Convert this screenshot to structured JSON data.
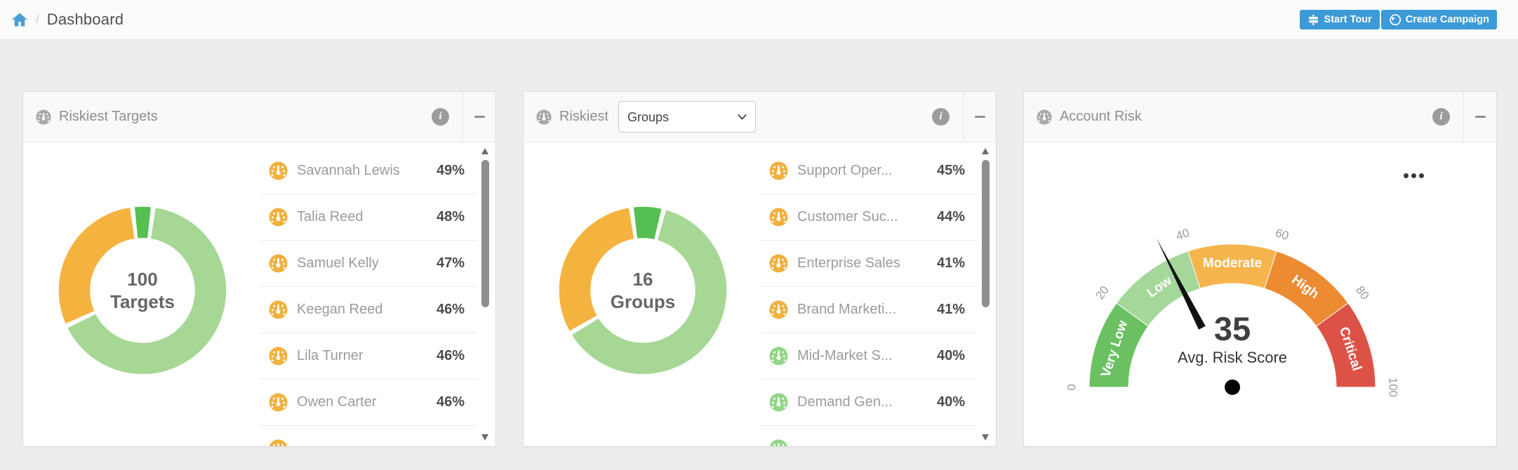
{
  "header": {
    "title": "Dashboard",
    "separator": "/",
    "start_tour_label": "Start Tour",
    "create_campaign_label": "Create Campaign"
  },
  "icons": {
    "info_glyph": "i"
  },
  "colors": {
    "accent_blue": "#3c9ad6",
    "header_icon_gray": "#a9a9a9",
    "risk_moderate_icon": "#f0b13f",
    "risk_low_icon": "#93d687",
    "donut_green": "#56bf52",
    "donut_light_green": "#a6d795",
    "donut_orange": "#f4b23f",
    "scrollbar_thumb": "#8f8f8f",
    "page_background": "#ededec"
  },
  "cards": {
    "riskiest_targets": {
      "title": "Riskiest Targets",
      "list": [
        {
          "name": "Savannah Lewis",
          "pct": "49%",
          "level": "moderate"
        },
        {
          "name": "Talia Reed",
          "pct": "48%",
          "level": "moderate"
        },
        {
          "name": "Samuel Kelly",
          "pct": "47%",
          "level": "moderate"
        },
        {
          "name": "Keegan Reed",
          "pct": "46%",
          "level": "moderate"
        },
        {
          "name": "Lila Turner",
          "pct": "46%",
          "level": "moderate"
        },
        {
          "name": "Owen Carter",
          "pct": "46%",
          "level": "moderate"
        }
      ],
      "partial_next_row_icon_level": "moderate"
    },
    "riskiest_groups": {
      "title": "Riskiest",
      "dropdown_value": "Groups",
      "list": [
        {
          "name": "Support Oper...",
          "pct": "45%",
          "level": "moderate"
        },
        {
          "name": "Customer Suc...",
          "pct": "44%",
          "level": "moderate"
        },
        {
          "name": "Enterprise Sales",
          "pct": "41%",
          "level": "moderate"
        },
        {
          "name": "Brand Marketi...",
          "pct": "41%",
          "level": "moderate"
        },
        {
          "name": "Mid-Market S...",
          "pct": "40%",
          "level": "low"
        },
        {
          "name": "Demand Gen...",
          "pct": "40%",
          "level": "low"
        }
      ],
      "partial_next_row_icon_level": "low"
    },
    "account_risk": {
      "title": "Account Risk"
    }
  },
  "chart_data": [
    {
      "type": "pie",
      "subtype": "donut",
      "title": "Riskiest Targets",
      "center_text": [
        "100",
        "Targets"
      ],
      "start_angle": -7,
      "direction": "clockwise",
      "slices": [
        {
          "label": "green",
          "value": 4,
          "color": "#56bf52"
        },
        {
          "label": "light-green",
          "value": 66,
          "color": "#a6d795"
        },
        {
          "label": "orange",
          "value": 30,
          "color": "#f4b23f"
        }
      ]
    },
    {
      "type": "pie",
      "subtype": "donut",
      "title": "Riskiest Groups",
      "center_text": [
        "16",
        "Groups"
      ],
      "start_angle": -8,
      "direction": "clockwise",
      "slices": [
        {
          "label": "green",
          "value": 1,
          "color": "#56bf52"
        },
        {
          "label": "light-green",
          "value": 10,
          "color": "#a6d795"
        },
        {
          "label": "orange",
          "value": 5,
          "color": "#f4b23f"
        }
      ]
    },
    {
      "type": "gauge",
      "title": "Account Risk",
      "min": 0,
      "max": 100,
      "value": 35,
      "value_label": "Avg. Risk Score",
      "ticks": [
        "0",
        "20",
        "40",
        "60",
        "80",
        "100"
      ],
      "bands": [
        {
          "label": "Very Low",
          "from": 0,
          "to": 20,
          "color": "#6bc162"
        },
        {
          "label": "Low",
          "from": 20,
          "to": 40,
          "color": "#a5d79b"
        },
        {
          "label": "Moderate",
          "from": 40,
          "to": 60,
          "color": "#f6b44c"
        },
        {
          "label": "High",
          "from": 60,
          "to": 80,
          "color": "#ec8b32"
        },
        {
          "label": "Critical",
          "from": 80,
          "to": 100,
          "color": "#dd5246"
        }
      ]
    }
  ]
}
